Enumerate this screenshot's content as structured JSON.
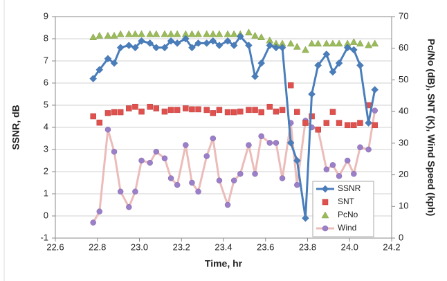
{
  "chart_data": {
    "type": "line",
    "x_label": "Time, hr",
    "y_label": "SSNR, dB",
    "y2_label": "Pc/No (dB), SNT (K), Wind Speed (kph)",
    "x": [
      22.78,
      22.81,
      22.85,
      22.88,
      22.91,
      22.95,
      22.98,
      23.01,
      23.05,
      23.08,
      23.12,
      23.15,
      23.18,
      23.22,
      23.25,
      23.28,
      23.32,
      23.35,
      23.38,
      23.42,
      23.45,
      23.48,
      23.52,
      23.55,
      23.58,
      23.62,
      23.65,
      23.68,
      23.72,
      23.75,
      23.79,
      23.82,
      23.85,
      23.89,
      23.92,
      23.95,
      23.99,
      24.02,
      24.05,
      24.09,
      24.12
    ],
    "series": [
      {
        "name": "SSNR",
        "color": "#4a7ebb",
        "line_color": "#4a7ebb",
        "marker": "diamond",
        "axis": "y",
        "values": [
          6.2,
          6.6,
          7.1,
          6.9,
          7.6,
          7.7,
          7.6,
          7.9,
          7.8,
          7.6,
          7.6,
          7.9,
          7.8,
          8.0,
          7.6,
          7.8,
          7.8,
          7.9,
          7.7,
          7.9,
          7.7,
          8.1,
          7.7,
          6.3,
          6.9,
          7.7,
          7.6,
          7.6,
          3.3,
          2.5,
          -0.1,
          5.5,
          6.8,
          7.3,
          6.5,
          6.9,
          7.6,
          7.5,
          6.8,
          4.2,
          5.7
        ]
      },
      {
        "name": "SNT",
        "color": "#e0504d",
        "line_color": null,
        "marker": "square",
        "axis": "y2",
        "values": [
          38.5,
          36.5,
          39.5,
          39.8,
          39.8,
          41,
          41.5,
          40,
          41.5,
          41,
          40,
          40.5,
          40.5,
          41,
          40.7,
          40.7,
          40.5,
          39.5,
          40.5,
          39.8,
          39.8,
          40,
          40.5,
          40.5,
          39.8,
          41.5,
          40,
          40.5,
          48.3,
          39.9,
          36.4,
          38.5,
          34.3,
          36.4,
          39.9,
          36.4,
          35.7,
          35.7,
          36.4,
          42,
          35.7
        ]
      },
      {
        "name": "PcNo",
        "color": "#9bbb59",
        "line_color": null,
        "marker": "triangle",
        "axis": "y2",
        "values": [
          63.5,
          64,
          64,
          64,
          64.5,
          64.5,
          64.5,
          64.5,
          64.5,
          64.5,
          64.5,
          64.5,
          64.5,
          64.5,
          64.5,
          64.5,
          64.5,
          64.5,
          64.5,
          64.5,
          64.5,
          64.5,
          65,
          64,
          63.5,
          62.5,
          61.5,
          61.5,
          61.5,
          60.5,
          59.5,
          61.5,
          61.5,
          61.5,
          61.5,
          61.5,
          61.5,
          62,
          61.5,
          61,
          61.5
        ]
      },
      {
        "name": "Wind",
        "color": "#9b7fc8",
        "line_color": "#ebbcb9",
        "marker": "circle",
        "axis": "y2",
        "values": [
          4.9,
          8.4,
          34.3,
          27.3,
          14.7,
          9.8,
          14.7,
          24.5,
          23.8,
          27.3,
          25.2,
          18.9,
          16.8,
          29.4,
          17.5,
          14.7,
          25.9,
          31.5,
          18.2,
          10.5,
          18.2,
          20.3,
          29.4,
          20.3,
          32.2,
          30.1,
          30.1,
          18.9,
          36.4,
          16.8,
          37.1,
          35.0,
          34.3,
          21.7,
          23.1,
          19.6,
          24.5,
          20.3,
          28.7,
          28.0,
          40.3
        ]
      }
    ],
    "xlim": [
      22.6,
      24.2
    ],
    "xticks": [
      22.6,
      22.8,
      {
        "value": 23,
        "label": "23.0"
      },
      23.2,
      23.4,
      23.6,
      23.8,
      {
        "value": 24,
        "label": "24.0"
      },
      24.2
    ],
    "ylim": [
      -1,
      9
    ],
    "yticks": [
      -1,
      0,
      1,
      2,
      3,
      4,
      5,
      6,
      7,
      8,
      9
    ],
    "y2lim": [
      0,
      70
    ],
    "y2ticks": [
      0,
      10,
      20,
      30,
      40,
      50,
      60,
      70
    ],
    "grid": true,
    "legend": "lower right"
  }
}
